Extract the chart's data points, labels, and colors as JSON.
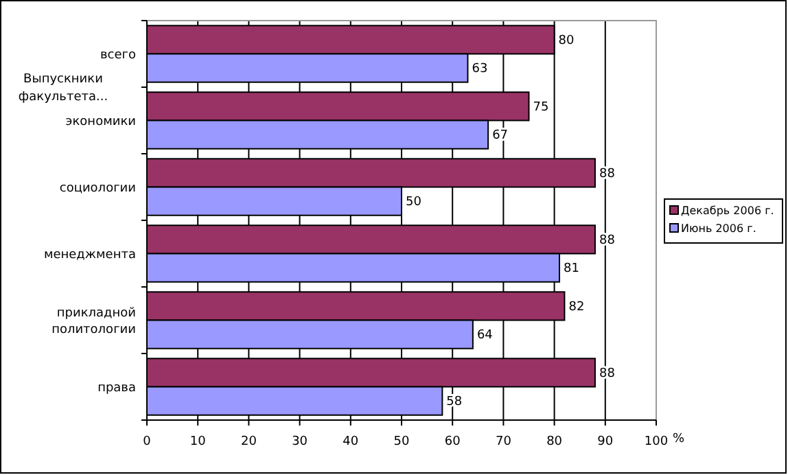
{
  "chart_data": {
    "type": "bar",
    "orientation": "horizontal",
    "categories": [
      "всего",
      "экономики",
      "социологии",
      "менеджмента",
      "прикладной политологии",
      "права"
    ],
    "series": [
      {
        "name": "Декабрь 2006 г.",
        "color": "#993366",
        "values": [
          80,
          75,
          88,
          88,
          82,
          88
        ]
      },
      {
        "name": "Июнь 2006 г.",
        "color": "#9999ff",
        "values": [
          63,
          67,
          50,
          81,
          64,
          58
        ]
      }
    ],
    "xlim": [
      0,
      100
    ],
    "xticks": [
      0,
      10,
      20,
      30,
      40,
      50,
      60,
      70,
      80,
      90,
      100
    ],
    "xlabel": "%",
    "ylabel": "Выпускники факультета...",
    "grid": "x",
    "legend": "right",
    "data_labels": true
  }
}
